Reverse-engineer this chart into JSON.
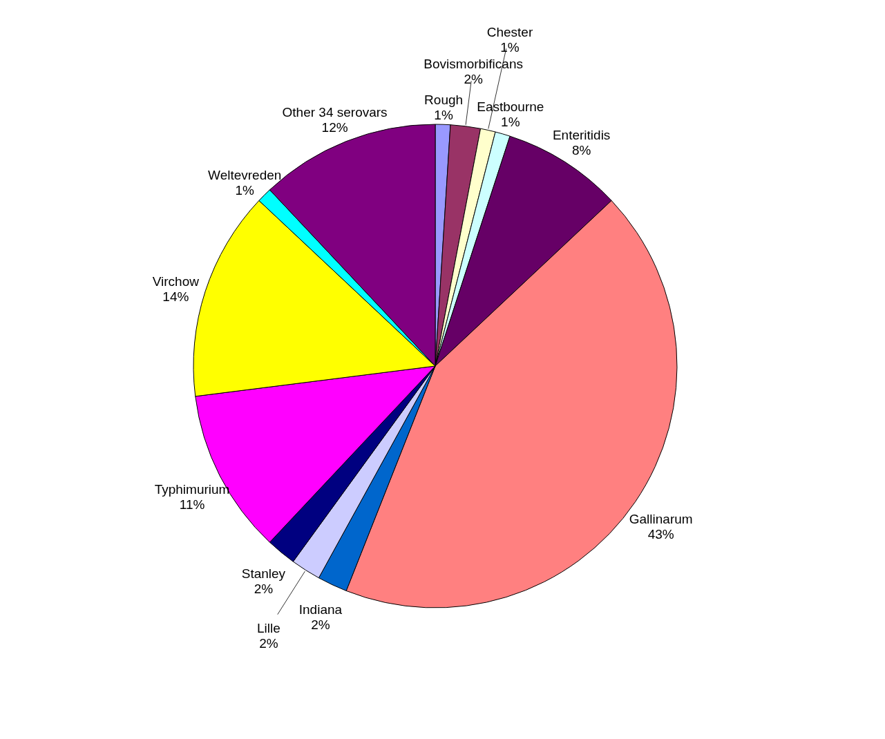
{
  "chart_data": {
    "type": "pie",
    "categories": [
      "Rough",
      "Bovismorbificans",
      "Chester",
      "Eastbourne",
      "Enteritidis",
      "Gallinarum",
      "Indiana",
      "Lille",
      "Stanley",
      "Typhimurium",
      "Virchow",
      "Weltevreden",
      "Other 34 serovars"
    ],
    "values": [
      1,
      2,
      1,
      1,
      8,
      43,
      2,
      2,
      2,
      11,
      14,
      1,
      12
    ],
    "value_labels": [
      "1%",
      "2%",
      "1%",
      "1%",
      "8%",
      "43%",
      "2%",
      "2%",
      "2%",
      "11%",
      "14%",
      "1%",
      "12%"
    ],
    "colors": [
      "#9999ff",
      "#993366",
      "#ffffcc",
      "#ccffff",
      "#660066",
      "#ff8080",
      "#0066cc",
      "#ccccff",
      "#000080",
      "#ff00ff",
      "#ffff00",
      "#00ffff",
      "#800080"
    ]
  }
}
